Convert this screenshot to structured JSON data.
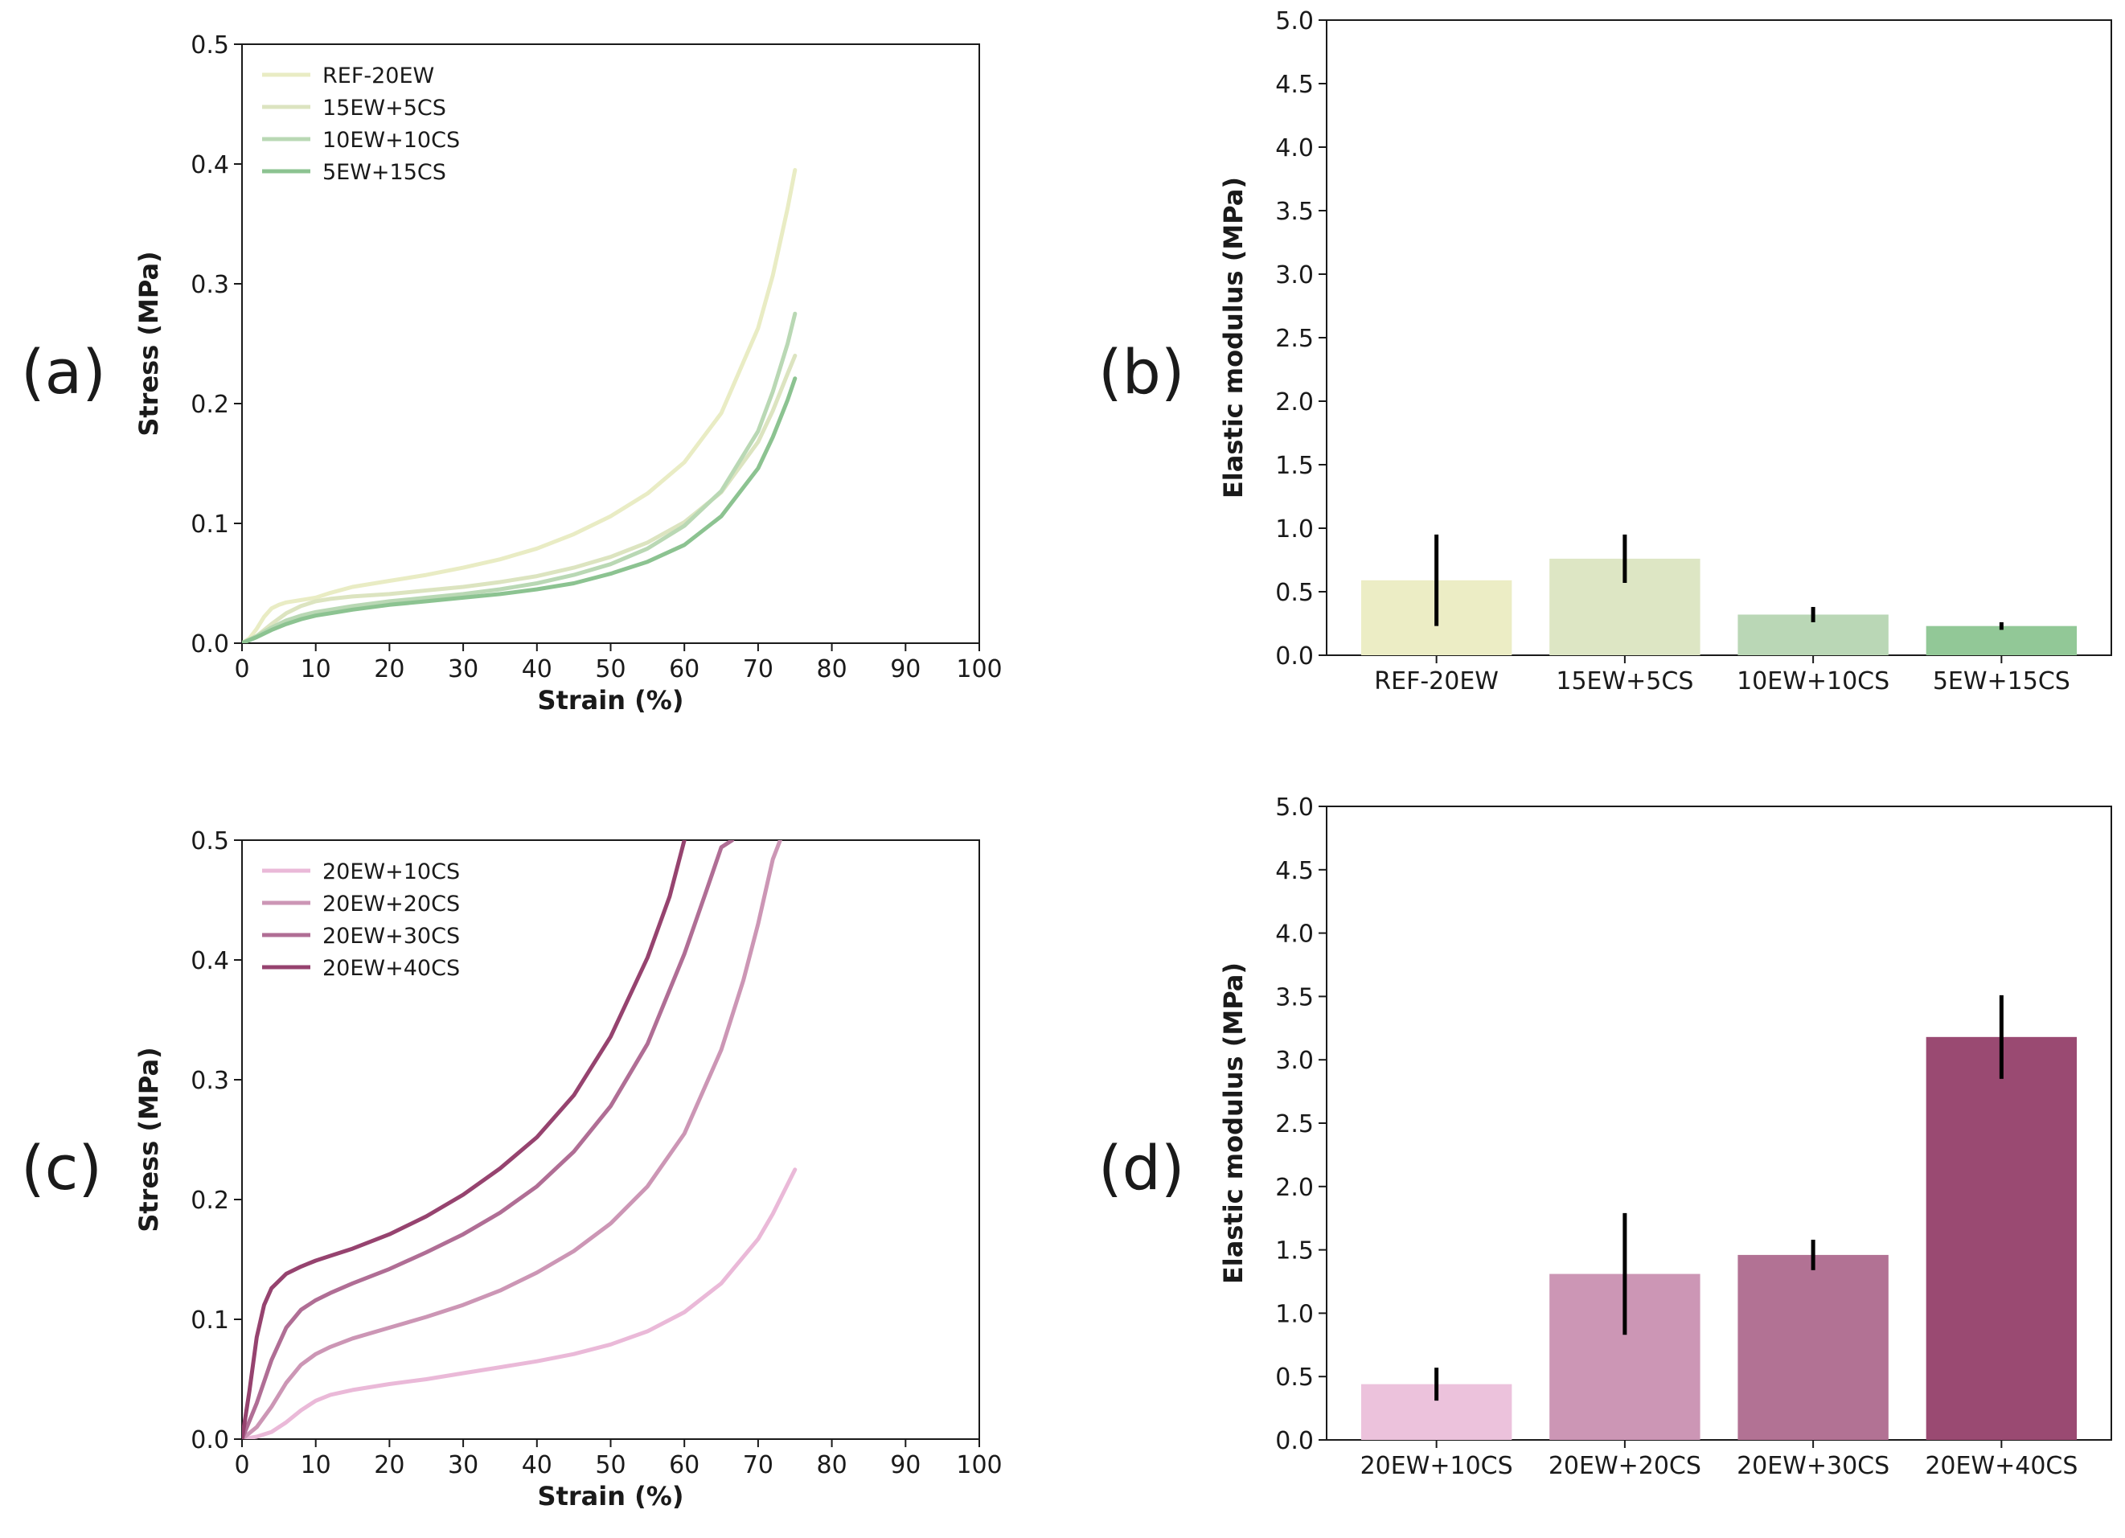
{
  "panels": [
    {
      "letter": "(a)"
    },
    {
      "letter": "(b)"
    },
    {
      "letter": "(c)"
    },
    {
      "letter": "(d)"
    }
  ],
  "chart_data": [
    {
      "id": "a",
      "type": "line",
      "xlabel": "Strain (%)",
      "ylabel": "Stress (MPa)",
      "xlim": [
        0,
        100
      ],
      "ylim": [
        0,
        0.5
      ],
      "xticks": [
        "0",
        "10",
        "20",
        "30",
        "40",
        "50",
        "60",
        "70",
        "80",
        "90",
        "100"
      ],
      "yticks": [
        "0.0",
        "0.1",
        "0.2",
        "0.3",
        "0.4",
        "0.5"
      ],
      "legend_position": "top-left",
      "series": [
        {
          "name": "REF-20EW",
          "color": "#e9ecc4",
          "x": [
            0,
            1,
            2,
            3,
            4,
            5,
            6,
            8,
            10,
            12,
            15,
            20,
            25,
            30,
            35,
            40,
            45,
            50,
            55,
            60,
            65,
            70,
            72,
            74,
            75
          ],
          "y": [
            0,
            0.004,
            0.012,
            0.022,
            0.029,
            0.032,
            0.034,
            0.036,
            0.038,
            0.042,
            0.047,
            0.052,
            0.057,
            0.063,
            0.07,
            0.079,
            0.091,
            0.106,
            0.125,
            0.151,
            0.192,
            0.263,
            0.307,
            0.363,
            0.395
          ]
        },
        {
          "name": "15EW+5CS",
          "color": "#dce4c0",
          "x": [
            0,
            2,
            4,
            6,
            8,
            10,
            12,
            15,
            20,
            25,
            30,
            35,
            40,
            45,
            50,
            55,
            60,
            65,
            70,
            72,
            74,
            75
          ],
          "y": [
            0,
            0.006,
            0.016,
            0.025,
            0.031,
            0.035,
            0.037,
            0.039,
            0.041,
            0.044,
            0.047,
            0.051,
            0.056,
            0.063,
            0.072,
            0.084,
            0.101,
            0.126,
            0.168,
            0.194,
            0.225,
            0.24
          ]
        },
        {
          "name": "10EW+10CS",
          "color": "#b9d8b4",
          "x": [
            0,
            2,
            4,
            6,
            8,
            10,
            12,
            15,
            20,
            25,
            30,
            35,
            40,
            45,
            50,
            55,
            60,
            65,
            70,
            72,
            74,
            75
          ],
          "y": [
            0,
            0.006,
            0.013,
            0.019,
            0.023,
            0.026,
            0.028,
            0.031,
            0.035,
            0.038,
            0.041,
            0.045,
            0.05,
            0.057,
            0.066,
            0.079,
            0.098,
            0.127,
            0.177,
            0.21,
            0.25,
            0.275
          ]
        },
        {
          "name": "5EW+15CS",
          "color": "#8cc391",
          "x": [
            0,
            2,
            4,
            6,
            8,
            10,
            12,
            15,
            20,
            25,
            30,
            35,
            40,
            45,
            50,
            55,
            60,
            65,
            70,
            72,
            74,
            75
          ],
          "y": [
            0,
            0.005,
            0.011,
            0.016,
            0.02,
            0.023,
            0.025,
            0.028,
            0.032,
            0.035,
            0.038,
            0.041,
            0.045,
            0.05,
            0.058,
            0.068,
            0.082,
            0.106,
            0.146,
            0.172,
            0.203,
            0.221
          ]
        }
      ]
    },
    {
      "id": "b",
      "type": "bar",
      "xlabel": "",
      "ylabel": "Elastic modulus (MPa)",
      "ylim": [
        0,
        5
      ],
      "yticks": [
        "0.0",
        "0.5",
        "1.0",
        "1.5",
        "2.0",
        "2.5",
        "3.0",
        "3.5",
        "4.0",
        "4.5",
        "5.0"
      ],
      "categories": [
        "REF-20EW",
        "15EW+5CS",
        "10EW+10CS",
        "5EW+15CS"
      ],
      "values": [
        0.59,
        0.76,
        0.32,
        0.23
      ],
      "errors": [
        0.36,
        0.19,
        0.06,
        0.03
      ],
      "colors": [
        "#ecedc5",
        "#dde6c4",
        "#bad7b6",
        "#92c897"
      ]
    },
    {
      "id": "c",
      "type": "line",
      "xlabel": "Strain (%)",
      "ylabel": "Stress (MPa)",
      "xlim": [
        0,
        100
      ],
      "ylim": [
        0,
        0.5
      ],
      "xticks": [
        "0",
        "10",
        "20",
        "30",
        "40",
        "50",
        "60",
        "70",
        "80",
        "90",
        "100"
      ],
      "yticks": [
        "0.0",
        "0.1",
        "0.2",
        "0.3",
        "0.4",
        "0.5"
      ],
      "legend_position": "top-left",
      "series": [
        {
          "name": "20EW+10CS",
          "color": "#eab9d8",
          "x": [
            0,
            2,
            4,
            6,
            8,
            10,
            12,
            15,
            20,
            25,
            30,
            35,
            40,
            45,
            50,
            55,
            60,
            65,
            70,
            72,
            75
          ],
          "y": [
            0,
            0.002,
            0.006,
            0.014,
            0.024,
            0.032,
            0.037,
            0.041,
            0.046,
            0.05,
            0.055,
            0.06,
            0.065,
            0.071,
            0.079,
            0.09,
            0.106,
            0.13,
            0.167,
            0.188,
            0.225
          ]
        },
        {
          "name": "20EW+20CS",
          "color": "#cc96b5",
          "x": [
            0,
            2,
            4,
            6,
            8,
            10,
            12,
            15,
            20,
            25,
            30,
            35,
            40,
            45,
            50,
            55,
            60,
            65,
            68,
            70,
            72,
            73
          ],
          "y": [
            0,
            0.01,
            0.027,
            0.047,
            0.062,
            0.071,
            0.077,
            0.084,
            0.093,
            0.102,
            0.112,
            0.124,
            0.139,
            0.157,
            0.18,
            0.211,
            0.255,
            0.325,
            0.383,
            0.43,
            0.484,
            0.5
          ]
        },
        {
          "name": "20EW+30CS",
          "color": "#b06e95",
          "x": [
            0,
            2,
            4,
            6,
            8,
            10,
            12,
            15,
            20,
            25,
            30,
            35,
            40,
            45,
            50,
            55,
            60,
            63,
            65,
            66.5
          ],
          "y": [
            0,
            0.03,
            0.066,
            0.093,
            0.108,
            0.116,
            0.122,
            0.13,
            0.142,
            0.156,
            0.171,
            0.189,
            0.211,
            0.24,
            0.278,
            0.33,
            0.405,
            0.458,
            0.494,
            0.5
          ]
        },
        {
          "name": "20EW+40CS",
          "color": "#96436f",
          "x": [
            0,
            1,
            2,
            3,
            4,
            6,
            8,
            10,
            12,
            15,
            20,
            25,
            30,
            35,
            40,
            45,
            50,
            55,
            58,
            60
          ],
          "y": [
            0,
            0.04,
            0.085,
            0.112,
            0.126,
            0.138,
            0.144,
            0.149,
            0.153,
            0.159,
            0.171,
            0.186,
            0.204,
            0.226,
            0.252,
            0.287,
            0.336,
            0.402,
            0.453,
            0.5
          ]
        }
      ]
    },
    {
      "id": "d",
      "type": "bar",
      "xlabel": "",
      "ylabel": "Elastic modulus (MPa)",
      "ylim": [
        0,
        5
      ],
      "yticks": [
        "0.0",
        "0.5",
        "1.0",
        "1.5",
        "2.0",
        "2.5",
        "3.0",
        "3.5",
        "4.0",
        "4.5",
        "5.0"
      ],
      "categories": [
        "20EW+10CS",
        "20EW+20CS",
        "20EW+30CS",
        "20EW+40CS"
      ],
      "values": [
        0.44,
        1.31,
        1.46,
        3.18
      ],
      "errors": [
        0.13,
        0.48,
        0.12,
        0.33
      ],
      "colors": [
        "#ecc2dc",
        "#cc96b5",
        "#b27294",
        "#9a4a72"
      ]
    }
  ]
}
